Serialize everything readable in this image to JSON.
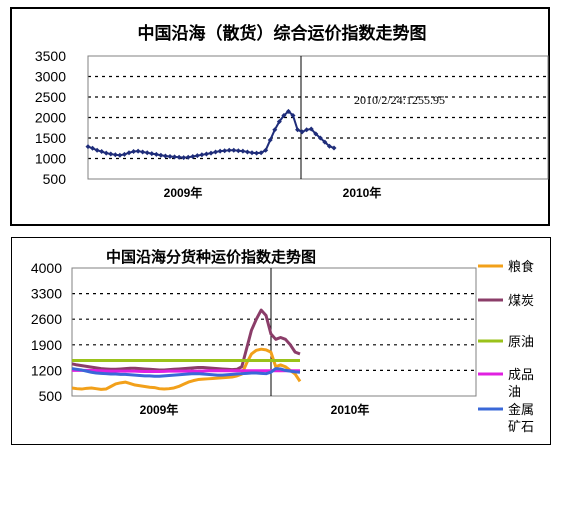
{
  "chart_data": [
    {
      "type": "line",
      "title": "中国沿海（散货）综合运价指数走势图",
      "y_ticks": [
        "3500",
        "3000",
        "2500",
        "2000",
        "1500",
        "1000",
        "500"
      ],
      "ylim": [
        500,
        3500
      ],
      "x_tick_labels": [
        "2009年",
        "2010年"
      ],
      "annotation": "2010/2/24:1255.95",
      "grid": "dotted horizontal",
      "colors": {
        "series": "#1f2d7a"
      },
      "series": [
        {
          "values": [
            1290,
            1250,
            1200,
            1170,
            1130,
            1110,
            1090,
            1080,
            1100,
            1140,
            1170,
            1180,
            1160,
            1140,
            1120,
            1100,
            1080,
            1060,
            1050,
            1040,
            1030,
            1020,
            1030,
            1050,
            1070,
            1090,
            1110,
            1130,
            1160,
            1180,
            1190,
            1200,
            1200,
            1190,
            1180,
            1160,
            1140,
            1130,
            1140,
            1200,
            1450,
            1700,
            1900,
            2050,
            2150,
            2050,
            1700,
            1650,
            1700,
            1720,
            1600,
            1500,
            1400,
            1300,
            1255.95
          ]
        }
      ]
    },
    {
      "type": "line",
      "title": "中国沿海分货种运价指数走势图",
      "y_ticks": [
        "4000",
        "3300",
        "2600",
        "1900",
        "1200",
        "500"
      ],
      "ylim": [
        500,
        4000
      ],
      "x_tick_labels": [
        "2009年",
        "2010年"
      ],
      "legend_position": "right",
      "grid": "dotted horizontal",
      "series": [
        {
          "name": "粮食",
          "color": "#f2a01a",
          "values": [
            720,
            700,
            690,
            710,
            720,
            700,
            680,
            690,
            760,
            830,
            860,
            880,
            840,
            800,
            780,
            760,
            740,
            730,
            700,
            690,
            700,
            720,
            760,
            820,
            880,
            920,
            950,
            960,
            970,
            980,
            990,
            1000,
            1010,
            1020,
            1050,
            1100,
            1400,
            1650,
            1750,
            1780,
            1760,
            1700,
            1300,
            1350,
            1300,
            1200,
            1100,
            900
          ]
        },
        {
          "name": "煤炭",
          "color": "#8b3d69",
          "values": [
            1380,
            1350,
            1330,
            1310,
            1290,
            1270,
            1250,
            1240,
            1230,
            1230,
            1240,
            1250,
            1260,
            1260,
            1250,
            1240,
            1230,
            1220,
            1210,
            1210,
            1220,
            1230,
            1240,
            1250,
            1260,
            1270,
            1280,
            1280,
            1270,
            1260,
            1250,
            1240,
            1230,
            1220,
            1230,
            1300,
            1800,
            2300,
            2600,
            2850,
            2700,
            2200,
            2050,
            2100,
            2050,
            1900,
            1700,
            1650
          ]
        },
        {
          "name": "原油",
          "color": "#9ac21a",
          "values": [
            1470,
            1470,
            1470,
            1470,
            1470,
            1470,
            1470,
            1470,
            1470,
            1470,
            1470,
            1470,
            1470,
            1470,
            1470,
            1470,
            1470,
            1470,
            1470,
            1470,
            1470,
            1470,
            1470,
            1470,
            1470,
            1470,
            1470,
            1470,
            1470,
            1470,
            1470,
            1470,
            1470,
            1470,
            1470,
            1470,
            1470,
            1470,
            1470,
            1470,
            1470,
            1470,
            1470,
            1470,
            1470,
            1470,
            1470,
            1470
          ]
        },
        {
          "name": "成品油",
          "color": "#e020e0",
          "values": [
            1200,
            1200,
            1200,
            1200,
            1200,
            1195,
            1190,
            1185,
            1180,
            1180,
            1180,
            1180,
            1180,
            1180,
            1175,
            1170,
            1170,
            1170,
            1170,
            1175,
            1180,
            1180,
            1180,
            1180,
            1180,
            1180,
            1180,
            1185,
            1190,
            1190,
            1190,
            1190,
            1190,
            1190,
            1190,
            1190,
            1190,
            1190,
            1190,
            1190,
            1190,
            1190,
            1190,
            1190,
            1190,
            1190,
            1190,
            1190
          ]
        },
        {
          "name": "金属矿石",
          "color": "#3a68d8",
          "values": [
            1250,
            1230,
            1210,
            1180,
            1150,
            1130,
            1120,
            1110,
            1100,
            1100,
            1090,
            1090,
            1080,
            1070,
            1060,
            1050,
            1050,
            1040,
            1040,
            1050,
            1060,
            1070,
            1080,
            1090,
            1100,
            1110,
            1110,
            1100,
            1090,
            1080,
            1070,
            1070,
            1080,
            1090,
            1100,
            1110,
            1120,
            1130,
            1130,
            1120,
            1110,
            1150,
            1250,
            1240,
            1200,
            1180,
            1160,
            1150
          ]
        }
      ]
    }
  ]
}
